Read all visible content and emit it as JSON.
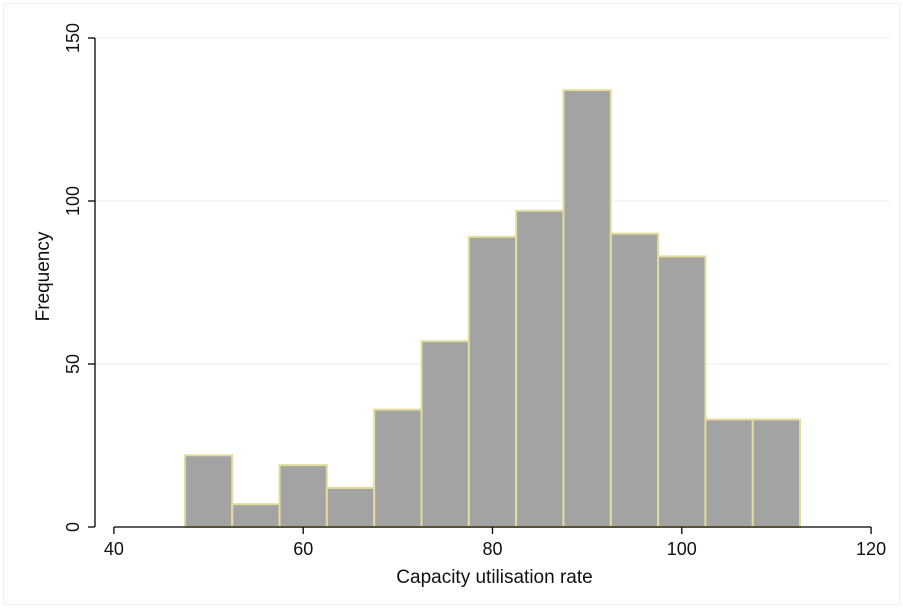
{
  "chart_data": {
    "type": "bar",
    "subtype": "histogram",
    "xlabel": "Capacity utilisation rate",
    "ylabel": "Frequency",
    "xlim": [
      38,
      122
    ],
    "ylim": [
      0,
      150
    ],
    "xticks": [
      40,
      60,
      80,
      100,
      120
    ],
    "yticks": [
      0,
      50,
      100,
      150
    ],
    "grid": {
      "horizontal": true,
      "vertical": false
    },
    "bin_width": 5,
    "bins": [
      {
        "start": 47.5,
        "end": 52.5,
        "count": 22
      },
      {
        "start": 52.5,
        "end": 57.5,
        "count": 7
      },
      {
        "start": 57.5,
        "end": 62.5,
        "count": 19
      },
      {
        "start": 62.5,
        "end": 67.5,
        "count": 12
      },
      {
        "start": 67.5,
        "end": 72.5,
        "count": 36
      },
      {
        "start": 72.5,
        "end": 77.5,
        "count": 57
      },
      {
        "start": 77.5,
        "end": 82.5,
        "count": 89
      },
      {
        "start": 82.5,
        "end": 87.5,
        "count": 97
      },
      {
        "start": 87.5,
        "end": 92.5,
        "count": 134
      },
      {
        "start": 92.5,
        "end": 97.5,
        "count": 90
      },
      {
        "start": 97.5,
        "end": 102.5,
        "count": 83
      },
      {
        "start": 102.5,
        "end": 107.5,
        "count": 33
      },
      {
        "start": 107.5,
        "end": 112.5,
        "count": 33
      }
    ],
    "colors": {
      "bar_fill": "#a3a3a3",
      "bar_edge": "#e4dc9c",
      "grid": "#eeeeee",
      "axis": "#000000"
    }
  }
}
